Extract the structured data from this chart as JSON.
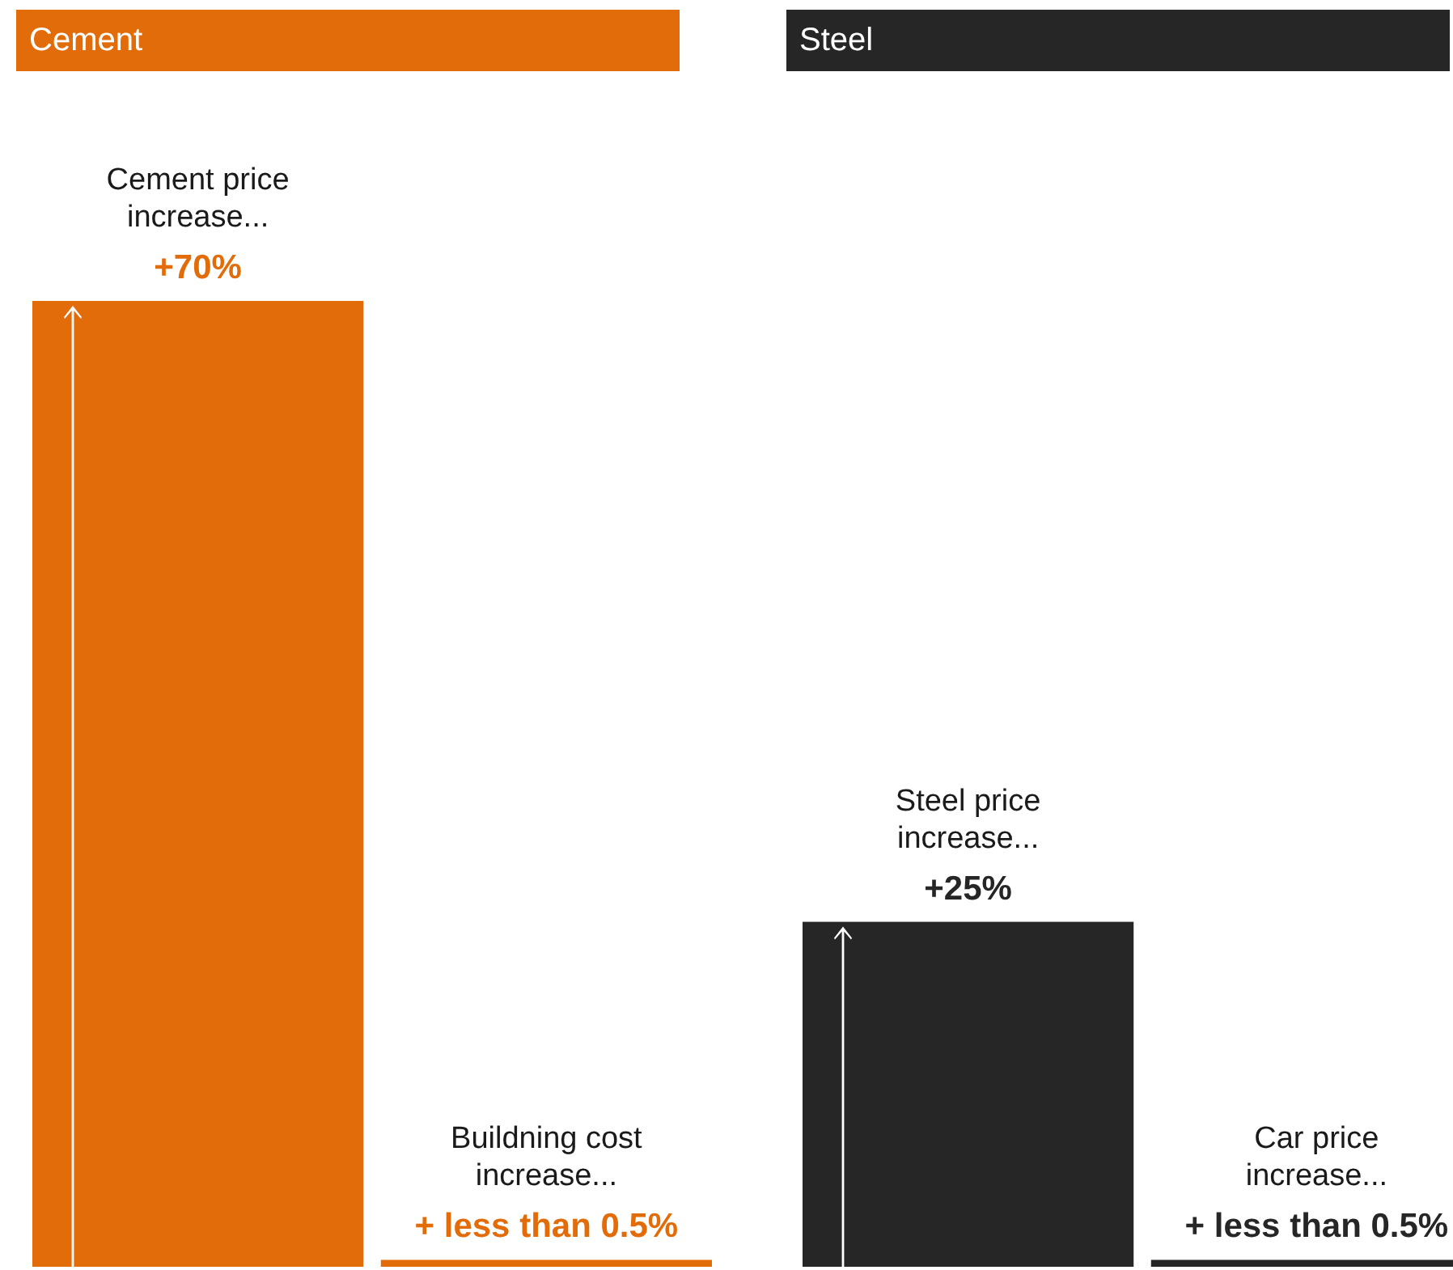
{
  "chart_data": [
    {
      "type": "bar",
      "title": "Cement",
      "categories": [
        null,
        null
      ],
      "values": [
        70,
        0.5
      ],
      "color": "#e36c0a",
      "value_labels": [
        "+70%",
        "+ less than 0.5%"
      ],
      "annotations": [
        "Cement price increase...",
        "Buildning cost increase..."
      ]
    },
    {
      "type": "bar",
      "title": "Steel",
      "categories": [
        null,
        null
      ],
      "values": [
        25,
        0.5
      ],
      "color": "#262626",
      "value_labels": [
        "+25%",
        "+ less than 0.5%"
      ],
      "annotations": [
        "Steel price increase...",
        "Car price increase..."
      ]
    }
  ]
}
